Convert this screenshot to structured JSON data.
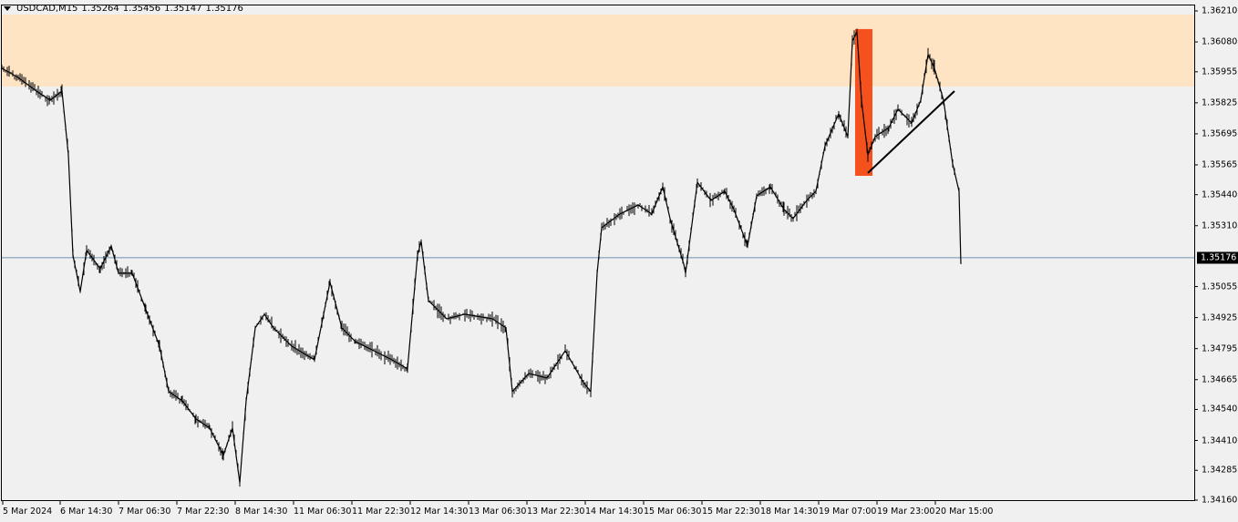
{
  "header": {
    "symbol": "USDCAD,M15",
    "open": "1.35264",
    "high": "1.35456",
    "low": "1.35147",
    "close": "1.35176"
  },
  "colors": {
    "zone": "#ffe4c4",
    "box": "#f4511e",
    "line": "#000000",
    "current": "#6b8fb5",
    "background": "#f0f0f0"
  },
  "price_axis": [
    "1.36210",
    "1.36080",
    "1.35955",
    "1.35825",
    "1.35695",
    "1.35565",
    "1.35440",
    "1.35310",
    "1.35055",
    "1.34925",
    "1.34795",
    "1.34665",
    "1.34540",
    "1.34410",
    "1.34285",
    "1.34160"
  ],
  "current_price": "1.35176",
  "time_axis": [
    "5 Mar 2024",
    "6 Mar 14:30",
    "7 Mar 06:30",
    "7 Mar 22:30",
    "8 Mar 14:30",
    "11 Mar 06:30",
    "11 Mar 22:30",
    "12 Mar 14:30",
    "13 Mar 06:30",
    "13 Mar 22:30",
    "14 Mar 14:30",
    "15 Mar 06:30",
    "15 Mar 22:30",
    "18 Mar 14:30",
    "19 Mar 07:00",
    "19 Mar 23:00",
    "20 Mar 15:00"
  ],
  "chart_data": {
    "type": "line",
    "ylim": [
      1.3416,
      1.3621
    ],
    "prices": [
      1.3597,
      1.35931,
      1.35874,
      1.35836,
      1.35874,
      1.35607,
      1.35187,
      1.35034,
      1.35206,
      1.3513,
      1.35225,
      1.35111,
      1.35111,
      1.34958,
      1.34805,
      1.34615,
      1.34576,
      1.345,
      1.34462,
      1.34347,
      1.34462,
      1.34233,
      1.34576,
      1.34882,
      1.34939,
      1.34882,
      1.34805,
      1.34748,
      1.35073,
      1.34882,
      1.34824,
      1.34786,
      1.34748,
      1.3471,
      1.35187,
      1.35244,
      1.34996,
      1.3492,
      1.34939,
      1.3492,
      1.34882,
      1.34615,
      1.34691,
      1.34672,
      1.34786,
      1.34653,
      1.34615,
      1.35111,
      1.35302,
      1.35359,
      1.35397,
      1.35359,
      1.35473,
      1.3534,
      1.35149,
      1.35111,
      1.35492,
      1.35416,
      1.35454,
      1.35378,
      1.35225,
      1.35435,
      1.35473,
      1.35378,
      1.3534,
      1.35416,
      1.35454,
      1.35645,
      1.35779,
      1.35683,
      1.36084,
      1.36122,
      1.35836,
      1.35607,
      1.35683,
      1.35721,
      1.35798,
      1.35741,
      1.35836,
      1.36027,
      1.3597,
      1.35836,
      1.35569,
      1.35454,
      1.35149
    ],
    "resistance_zone": [
      1.35893,
      1.36195
    ],
    "highlight_box": [
      1.35519,
      1.36134
    ],
    "trendline": [
      1.35531,
      1.35874
    ]
  }
}
